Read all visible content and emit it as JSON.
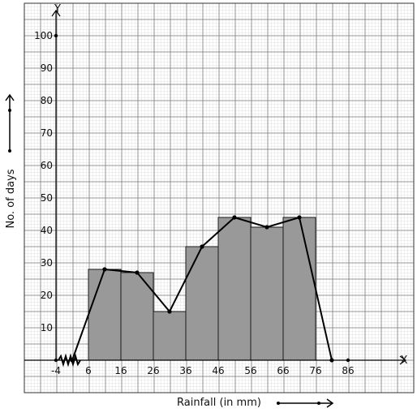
{
  "chart_data": {
    "type": "bar",
    "title": "",
    "xlabel": "Rainfall (in mm)",
    "ylabel": "No. of days",
    "x_axis_letter": "X",
    "y_axis_letter": "Y",
    "x_ticks": [
      "-4",
      "6",
      "16",
      "26",
      "36",
      "46",
      "56",
      "66",
      "76",
      "86"
    ],
    "y_ticks": [
      "10",
      "20",
      "30",
      "40",
      "50",
      "60",
      "70",
      "80",
      "90",
      "100"
    ],
    "ylim": [
      0,
      100
    ],
    "grid": true,
    "histogram": {
      "class_edges": [
        6,
        16,
        26,
        36,
        46,
        56,
        66,
        76
      ],
      "values": [
        28,
        27,
        15,
        35,
        44,
        41,
        44
      ],
      "bar_color": "#999999"
    },
    "frequency_polygon": {
      "x": [
        1,
        11,
        21,
        31,
        41,
        51,
        61,
        71,
        81
      ],
      "y": [
        0,
        28,
        27,
        15,
        35,
        44,
        41,
        44,
        0
      ]
    }
  }
}
